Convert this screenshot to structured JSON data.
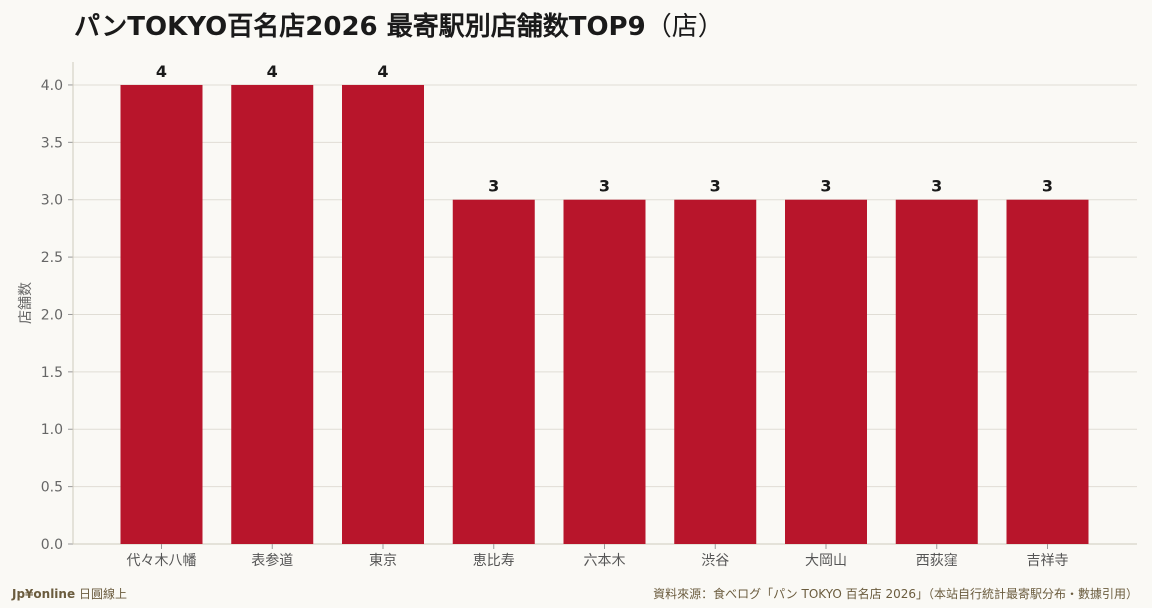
{
  "title": {
    "main": "パンTOKYO百名店2026 最寄駅別店舗数TOP9",
    "unit": "（店）"
  },
  "footer": {
    "brand": "Jp¥online",
    "brand_suffix": "日圓線上",
    "source": "資料來源：食べログ「パン TOKYO 百名店 2026」（本站自行統計最寄駅分布・數據引用）"
  },
  "colors": {
    "bar": "#b8152b",
    "background": "#faf9f5",
    "grid": "#e0ddd5"
  },
  "chart_data": {
    "type": "bar",
    "title": "パンTOKYO百名店2026 最寄駅別店舗数TOP9（店）",
    "xlabel": "",
    "ylabel": "店舗数",
    "categories": [
      "代々木八幡",
      "表参道",
      "東京",
      "恵比寿",
      "六本木",
      "渋谷",
      "大岡山",
      "西荻窪",
      "吉祥寺"
    ],
    "values": [
      4,
      4,
      4,
      3,
      3,
      3,
      3,
      3,
      3
    ],
    "value_labels": [
      "4",
      "4",
      "4",
      "3",
      "3",
      "3",
      "3",
      "3",
      "3"
    ],
    "y_ticks": [
      "0.0",
      "0.5",
      "1.0",
      "1.5",
      "2.0",
      "2.5",
      "3.0",
      "3.5",
      "4.0"
    ],
    "ylim": [
      0,
      4.2
    ],
    "grid": true,
    "legend": "none"
  }
}
